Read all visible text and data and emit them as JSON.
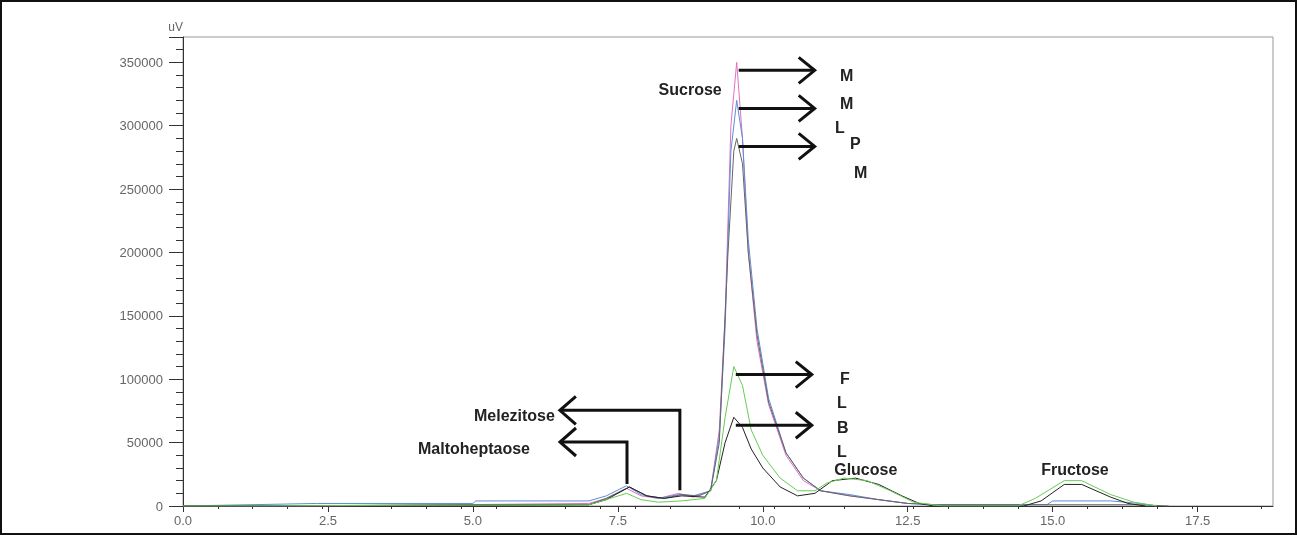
{
  "chart_data": {
    "type": "line",
    "ylabel": "uV",
    "xlim": [
      0,
      18.8
    ],
    "xticks": [
      {
        "value": 0,
        "label": "0.0"
      },
      {
        "value": 2.5,
        "label": "2.5"
      },
      {
        "value": 5,
        "label": "5.0"
      },
      {
        "value": 7.5,
        "label": "7.5"
      },
      {
        "value": 10,
        "label": "10.0"
      },
      {
        "value": 12.5,
        "label": "12.5"
      },
      {
        "value": 15,
        "label": "15.0"
      },
      {
        "value": 17.5,
        "label": "17.5"
      }
    ],
    "ylim": [
      0,
      370000
    ],
    "yticks": [
      0,
      50000,
      100000,
      150000,
      200000,
      250000,
      300000,
      350000
    ],
    "grid": false,
    "marker": "none",
    "line_style": "solid",
    "series": [
      {
        "color": "#e070c0",
        "x": [
          0,
          2.3,
          7.0,
          7.3,
          7.65,
          7.9,
          8.2,
          8.55,
          8.8,
          9.1,
          9.25,
          9.35,
          9.45,
          9.55,
          9.65,
          9.75,
          9.9,
          10.1,
          10.4,
          10.7,
          11.0,
          11.5,
          12.0,
          12.5
        ],
        "values": [
          0,
          0,
          2000,
          6000,
          14000,
          8000,
          6000,
          10000,
          7000,
          12000,
          60000,
          150000,
          300000,
          350000,
          290000,
          200000,
          130000,
          80000,
          40000,
          20000,
          12000,
          8000,
          5000,
          2000
        ]
      },
      {
        "color": "#5b8ed6",
        "x": [
          0,
          2.3,
          5.0,
          5.05,
          7.0,
          7.3,
          7.65,
          7.9,
          8.2,
          8.55,
          8.8,
          9.1,
          9.25,
          9.35,
          9.45,
          9.55,
          9.65,
          9.75,
          9.9,
          10.1,
          10.4,
          10.7,
          11.0,
          11.5,
          12.0,
          12.5,
          13.0,
          14.9,
          15.0,
          16.0,
          16.5,
          16.8
        ],
        "values": [
          0,
          2000,
          2000,
          4000,
          4000,
          8000,
          16000,
          9000,
          6000,
          9000,
          8000,
          12000,
          55000,
          140000,
          280000,
          320000,
          290000,
          210000,
          140000,
          85000,
          42000,
          22000,
          12000,
          9000,
          5000,
          2000,
          1000,
          1000,
          4000,
          4000,
          2000,
          0
        ]
      },
      {
        "color": "#666666",
        "x": [
          0,
          7.0,
          7.3,
          7.7,
          8.0,
          8.3,
          8.6,
          8.9,
          9.1,
          9.25,
          9.4,
          9.5,
          9.55,
          9.65,
          9.75,
          9.9,
          10.1,
          10.4,
          10.7,
          11.0,
          11.5,
          12.0,
          12.5,
          13.0,
          16.5,
          17.0
        ],
        "values": [
          0,
          1000,
          6000,
          15000,
          8000,
          6000,
          9000,
          8000,
          12000,
          50000,
          200000,
          280000,
          290000,
          270000,
          200000,
          135000,
          82000,
          42000,
          22000,
          12000,
          8000,
          5000,
          2000,
          1000,
          1000,
          0
        ]
      },
      {
        "color": "#222222",
        "x": [
          0,
          7.0,
          7.3,
          7.7,
          8.0,
          8.3,
          8.6,
          9.0,
          9.2,
          9.35,
          9.5,
          9.65,
          9.8,
          10.0,
          10.3,
          10.6,
          10.9,
          11.2,
          11.6,
          12.0,
          12.4,
          12.7,
          12.95,
          14.5,
          14.8,
          15.2,
          15.5,
          16.0,
          16.3,
          16.6
        ],
        "values": [
          0,
          1000,
          5000,
          15000,
          8000,
          6000,
          8000,
          7000,
          20000,
          50000,
          70000,
          62000,
          45000,
          30000,
          15000,
          8000,
          10000,
          20000,
          22000,
          17000,
          8000,
          2000,
          0,
          0,
          4000,
          17000,
          17000,
          7000,
          2000,
          0
        ]
      },
      {
        "color": "#66cc55",
        "x": [
          0,
          7.0,
          7.3,
          7.65,
          7.9,
          8.2,
          8.6,
          9.0,
          9.2,
          9.35,
          9.5,
          9.65,
          9.8,
          10.0,
          10.3,
          10.6,
          10.9,
          11.1,
          11.4,
          11.8,
          12.2,
          12.6,
          13.1,
          14.4,
          14.7,
          15.2,
          15.5,
          16.0,
          16.4,
          16.8
        ],
        "values": [
          0,
          1000,
          5000,
          10000,
          5000,
          3000,
          4000,
          6000,
          20000,
          70000,
          110000,
          95000,
          60000,
          40000,
          22000,
          12000,
          12000,
          18000,
          22000,
          20000,
          12000,
          3000,
          0,
          0,
          6000,
          20000,
          20000,
          9000,
          3000,
          0
        ]
      }
    ],
    "annotations": [
      {
        "text": "Sucrose",
        "x": 9.55,
        "y": 350000
      },
      {
        "text": "Melezitose",
        "x": 8.57,
        "y": 10000
      },
      "Maltoheptaose",
      {
        "text": "Glucose",
        "x": 11.5,
        "y": 22000
      },
      {
        "text": "Fructose",
        "x": 15.35,
        "y": 20000
      },
      "M",
      "M",
      "L",
      "P",
      "M",
      "F",
      "L",
      "B",
      "L"
    ]
  }
}
